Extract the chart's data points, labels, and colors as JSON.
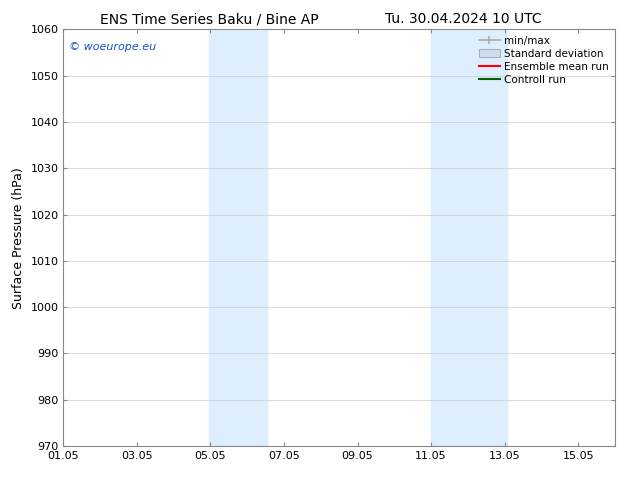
{
  "title_left": "ENS Time Series Baku / Bine AP",
  "title_right": "Tu. 30.04.2024 10 UTC",
  "ylabel": "Surface Pressure (hPa)",
  "ylim": [
    970,
    1060
  ],
  "yticks": [
    970,
    980,
    990,
    1000,
    1010,
    1020,
    1030,
    1040,
    1050,
    1060
  ],
  "xtick_labels": [
    "01.05",
    "03.05",
    "05.05",
    "07.05",
    "09.05",
    "11.05",
    "13.05",
    "15.05"
  ],
  "xtick_positions": [
    0,
    2,
    4,
    6,
    8,
    10,
    12,
    14
  ],
  "xlim": [
    0,
    15
  ],
  "shaded_regions": [
    {
      "xstart": 3.95,
      "xend": 5.55,
      "color": "#ddeeff"
    },
    {
      "xstart": 10.0,
      "xend": 12.05,
      "color": "#ddeeff"
    }
  ],
  "watermark_text": "© woeurope.eu",
  "watermark_color": "#1155cc",
  "legend_entries": [
    {
      "label": "min/max",
      "color": "#aaaaaa",
      "type": "errbar"
    },
    {
      "label": "Standard deviation",
      "color": "#ccddf0",
      "type": "band"
    },
    {
      "label": "Ensemble mean run",
      "color": "#ff0000",
      "type": "line"
    },
    {
      "label": "Controll run",
      "color": "#006600",
      "type": "line"
    }
  ],
  "bg_color": "#ffffff",
  "spine_color": "#888888",
  "grid_color": "#cccccc",
  "title_fontsize": 10,
  "axis_label_fontsize": 9,
  "tick_fontsize": 8,
  "watermark_fontsize": 8,
  "legend_fontsize": 7.5
}
